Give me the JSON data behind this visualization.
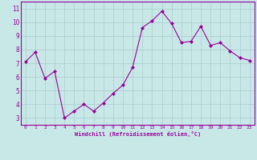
{
  "x": [
    0,
    1,
    2,
    3,
    4,
    5,
    6,
    7,
    8,
    9,
    10,
    11,
    12,
    13,
    14,
    15,
    16,
    17,
    18,
    19,
    20,
    21,
    22,
    23
  ],
  "y": [
    7.1,
    7.8,
    5.9,
    6.4,
    3.0,
    3.5,
    4.0,
    3.5,
    4.1,
    4.8,
    5.4,
    6.7,
    9.6,
    10.1,
    10.8,
    9.9,
    8.5,
    8.6,
    9.7,
    8.3,
    8.5,
    7.9,
    7.4,
    7.2
  ],
  "line_color": "#990099",
  "marker": "D",
  "marker_size": 2.0,
  "bg_color": "#c8e8e8",
  "grid_color": "#aacccc",
  "xlabel": "Windchill (Refroidissement éolien,°C)",
  "xlabel_color": "#990099",
  "tick_color": "#990099",
  "ylim": [
    2.5,
    11.5
  ],
  "xlim": [
    -0.5,
    23.5
  ],
  "yticks": [
    3,
    4,
    5,
    6,
    7,
    8,
    9,
    10,
    11
  ],
  "xticks": [
    0,
    1,
    2,
    3,
    4,
    5,
    6,
    7,
    8,
    9,
    10,
    11,
    12,
    13,
    14,
    15,
    16,
    17,
    18,
    19,
    20,
    21,
    22,
    23
  ],
  "spine_color": "#990099",
  "figsize": [
    3.2,
    2.0
  ],
  "dpi": 100
}
